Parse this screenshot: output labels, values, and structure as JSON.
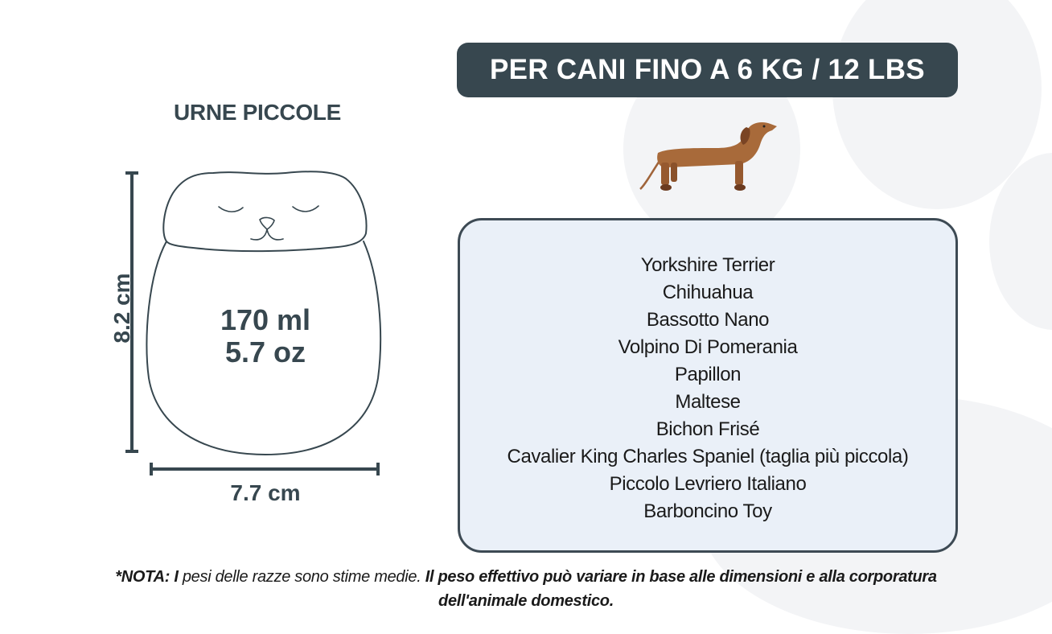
{
  "banner": {
    "title": "PER CANI FINO A 6 KG / 12 LBS"
  },
  "product": {
    "subtitle": "URNE PICCOLE",
    "capacity_ml": "170 ml",
    "capacity_oz": "5.7 oz",
    "height": "8.2 cm",
    "width": "7.7 cm"
  },
  "breeds": [
    "Yorkshire Terrier",
    "Chihuahua",
    "Bassotto Nano",
    "Volpino Di Pomerania",
    "Papillon",
    "Maltese",
    "Bichon Frisé",
    "Cavalier King Charles Spaniel (taglia più piccola)",
    "Piccolo Levriero Italiano",
    "Barboncino Toy"
  ],
  "note": {
    "part1": "*NOTA: I",
    "part2": " pesi delle razze sono stime medie.",
    "part3": " Il peso effettivo può variare in base alle dimensioni e alla corporatura dell'animale domestico."
  },
  "colors": {
    "primary": "#37474f",
    "box_bg": "#eaf0f8",
    "dog": "#a0643a",
    "paw_bg": "#f3f4f6"
  },
  "icons": {
    "background": "paw-print",
    "illustration": "dachshund"
  }
}
